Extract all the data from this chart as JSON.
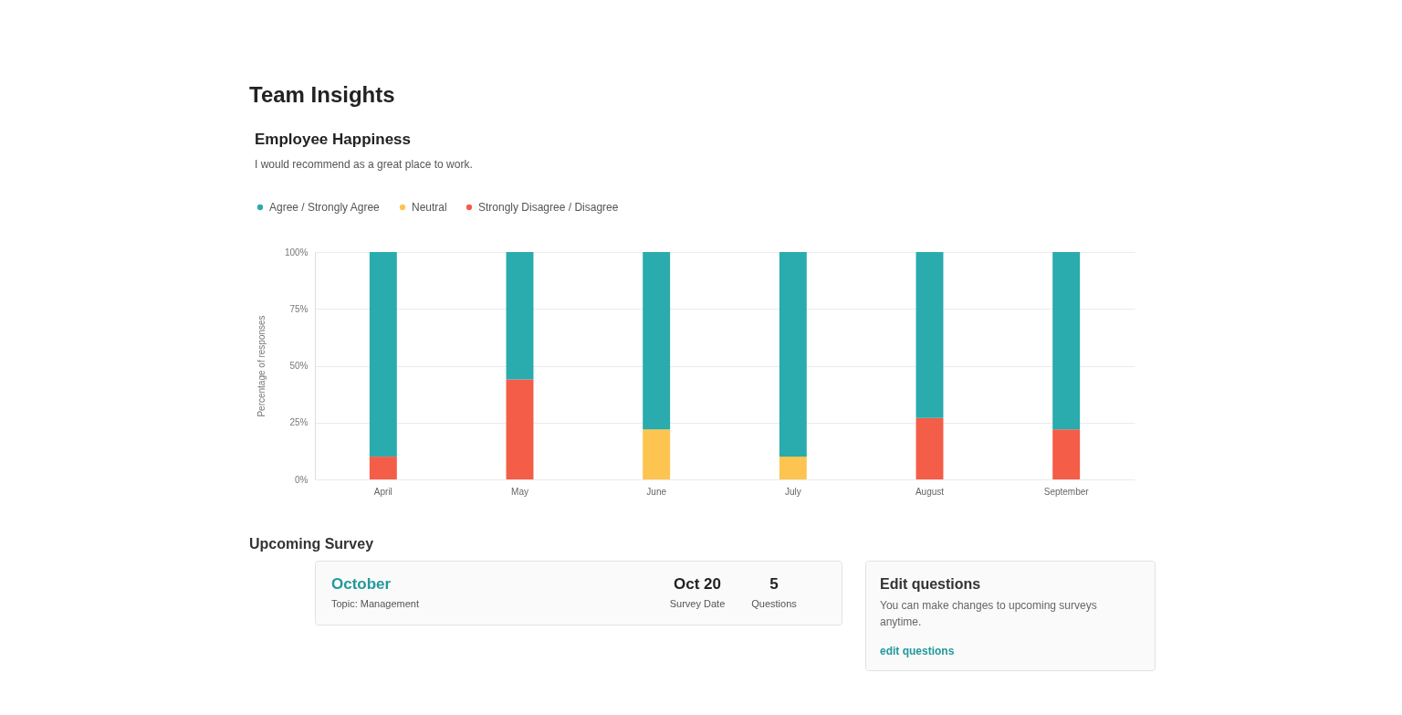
{
  "chart_data": [
    {
      "type": "other",
      "title": "Team Insights"
    },
    {
      "type": "bar",
      "title": "Employee Happiness",
      "subtitle": "I would recommend as a great place to work.",
      "ylabel": "Percentage of responses",
      "categories": [
        "April",
        "May",
        "June",
        "July",
        "August",
        "September"
      ],
      "stacked": true,
      "series": [
        {
          "name": "Strongly Disagree / Disagree",
          "color": "#f45d48",
          "values": [
            10,
            44,
            null,
            null,
            27,
            22
          ]
        },
        {
          "name": "Neutral",
          "color": "#fdc44f",
          "values": [
            null,
            null,
            22,
            10,
            null,
            null
          ]
        },
        {
          "name": "Agree / Strongly Agree",
          "color": "#2aabad",
          "values": [
            90,
            56,
            78,
            90,
            73,
            78
          ]
        }
      ],
      "ylim": [
        0,
        100
      ],
      "yticks": [
        {
          "value": 0,
          "label": "0%"
        },
        {
          "value": 25,
          "label": "25%"
        },
        {
          "value": 50,
          "label": "50%"
        },
        {
          "value": 75,
          "label": "75%"
        },
        {
          "value": 100,
          "label": "100%"
        }
      ],
      "grid": "y",
      "legend": "top left"
    },
    {
      "type": "other",
      "title": "Upcoming Survey",
      "annotations": [
        "October",
        "Topic: Management",
        "Oct 20",
        "Survey Date",
        "5",
        "Questions"
      ]
    },
    {
      "type": "other",
      "title": "Edit questions",
      "annotations": [
        "You can make changes to upcoming surveys anytime.",
        "edit questions"
      ]
    }
  ]
}
